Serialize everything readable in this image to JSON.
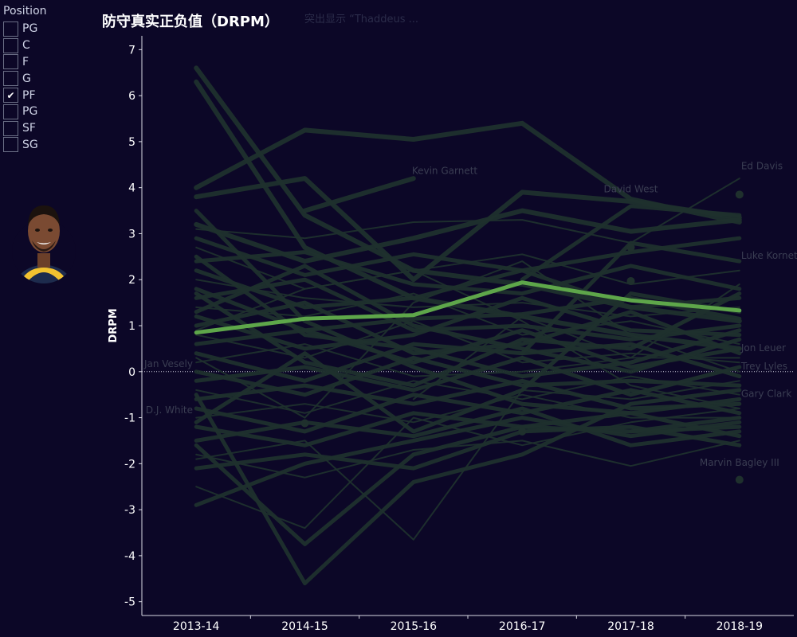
{
  "legend": {
    "title": "Position",
    "items": [
      {
        "label": "PG",
        "checked": false
      },
      {
        "label": "C",
        "checked": false
      },
      {
        "label": "F",
        "checked": false
      },
      {
        "label": "G",
        "checked": false
      },
      {
        "label": "PF",
        "checked": true
      },
      {
        "label": "PG",
        "checked": false
      },
      {
        "label": "SF",
        "checked": false
      },
      {
        "label": "SG",
        "checked": false
      }
    ]
  },
  "avatar_icon": "player-headshot-icon",
  "title": "防守真实正负值（DRPM）",
  "subnote": "突出显示 “Thaddeus ...",
  "colors": {
    "background": "#0c0727",
    "muted_lines": "#1f302d",
    "highlight": "#5ea64a",
    "axis_text": "#ffffff",
    "player_label": "#3a3d52"
  },
  "chart_data": {
    "type": "line",
    "title": "防守真实正负值（DRPM）",
    "ylabel": "DRPM",
    "xlabel": "",
    "categories": [
      "2013-14",
      "2014-15",
      "2015-16",
      "2016-17",
      "2017-18",
      "2018-19"
    ],
    "ylim": [
      -5.3,
      7.3
    ],
    "yticks": [
      7,
      6,
      5,
      4,
      3,
      2,
      1,
      0,
      -1,
      -2,
      -3,
      -4,
      -5
    ],
    "reference_line": 0,
    "highlight_series": {
      "values": [
        0.85,
        1.15,
        1.23,
        1.94,
        1.55,
        1.33
      ]
    },
    "series": [
      {
        "values": [
          6.6,
          3.4,
          2.2,
          1.9,
          1.4,
          1.1
        ]
      },
      {
        "values": [
          6.3,
          2.7,
          1.6,
          1.2,
          0.8,
          0.5
        ]
      },
      {
        "values": [
          4.0,
          5.25,
          5.05,
          5.4,
          3.75,
          3.25
        ]
      },
      {
        "values": [
          3.8,
          4.2,
          2.0,
          3.9,
          3.7,
          3.35
        ]
      },
      {
        "values": [
          null,
          3.5,
          4.2,
          null,
          null,
          null
        ]
      },
      {
        "values": [
          3.2,
          2.4,
          2.9,
          3.5,
          3.05,
          3.3
        ]
      },
      {
        "values": [
          3.1,
          2.9,
          3.25,
          3.3,
          2.8,
          4.2
        ]
      },
      {
        "values": [
          null,
          null,
          null,
          2.0,
          3.6,
          3.4
        ]
      },
      {
        "values": [
          2.9,
          2.1,
          2.55,
          2.2,
          2.6,
          2.9
        ]
      },
      {
        "values": [
          2.7,
          1.8,
          2.2,
          2.55,
          1.9,
          2.2
        ]
      },
      {
        "values": [
          2.4,
          2.6,
          1.9,
          1.7,
          2.3,
          1.8
        ]
      },
      {
        "values": [
          2.2,
          1.4,
          1.6,
          2.2,
          1.4,
          1.6
        ]
      },
      {
        "values": [
          2.0,
          1.6,
          1.4,
          1.5,
          1.2,
          1.4
        ]
      },
      {
        "values": [
          1.8,
          0.9,
          1.15,
          1.25,
          1.6,
          1.15
        ]
      },
      {
        "values": [
          1.6,
          2.0,
          0.9,
          1.0,
          0.7,
          1.0
        ]
      },
      {
        "values": [
          1.4,
          1.2,
          1.7,
          0.8,
          1.1,
          0.6
        ]
      },
      {
        "values": [
          1.2,
          0.5,
          0.8,
          1.6,
          0.9,
          0.8
        ]
      },
      {
        "values": [
          1.0,
          1.5,
          0.4,
          0.6,
          1.3,
          0.4
        ]
      },
      {
        "values": [
          0.8,
          0.3,
          1.1,
          0.2,
          0.4,
          0.2
        ]
      },
      {
        "values": [
          0.6,
          0.9,
          0.2,
          0.9,
          0.1,
          0.5
        ]
      },
      {
        "values": [
          0.4,
          -0.2,
          0.6,
          0.4,
          0.6,
          -0.1
        ]
      },
      {
        "values": [
          0.2,
          0.6,
          -0.1,
          0.0,
          0.3,
          0.3
        ]
      },
      {
        "values": [
          0.0,
          -0.5,
          0.3,
          -0.3,
          -0.2,
          -0.3
        ]
      },
      {
        "values": [
          -0.2,
          0.1,
          -0.4,
          0.3,
          -0.5,
          0.1
        ]
      },
      {
        "values": [
          -0.4,
          -0.9,
          -0.2,
          -0.6,
          -0.1,
          -0.5
        ]
      },
      {
        "values": [
          -0.6,
          -0.3,
          -0.7,
          -0.2,
          -0.8,
          -0.7
        ]
      },
      {
        "values": [
          -0.8,
          -1.3,
          -0.5,
          -0.9,
          -0.4,
          -0.9
        ]
      },
      {
        "values": [
          -1.0,
          -0.7,
          -1.1,
          -0.5,
          -1.0,
          -1.0
        ]
      },
      {
        "values": [
          -1.2,
          -1.6,
          -0.9,
          -1.2,
          -1.3,
          -1.2
        ]
      },
      {
        "values": [
          -1.5,
          -1.1,
          -1.4,
          -0.8,
          -1.6,
          -1.3
        ]
      },
      {
        "values": [
          -1.8,
          -2.3,
          -1.7,
          -1.5,
          -2.05,
          -1.5
        ]
      },
      {
        "values": [
          -2.1,
          -1.8,
          -2.1,
          -1.3,
          -1.2,
          -1.6
        ]
      },
      {
        "values": [
          -2.9,
          -2.0,
          -1.5,
          -1.0,
          -1.4,
          -1.1
        ]
      },
      {
        "values": [
          -2.5,
          -3.4,
          -1.0,
          -1.6,
          -1.1,
          -0.8
        ]
      },
      {
        "values": [
          -1.6,
          -3.75,
          -1.8,
          -1.2,
          -0.9,
          -0.6
        ]
      },
      {
        "values": [
          -0.5,
          -4.6,
          -2.4,
          -1.8,
          -0.7,
          -0.4
        ]
      },
      {
        "values": [
          -1.9,
          -1.5,
          -3.65,
          -0.4,
          -0.6,
          -0.2
        ]
      },
      {
        "values": [
          1.3,
          2.3,
          1.0,
          0.5,
          0.0,
          0.7
        ]
      },
      {
        "values": [
          2.5,
          0.8,
          0.5,
          -0.1,
          0.2,
          0.9
        ]
      },
      {
        "values": [
          0.9,
          1.8,
          2.2,
          1.1,
          -0.3,
          -0.8
        ]
      },
      {
        "values": [
          1.7,
          0.2,
          -0.3,
          0.7,
          0.5,
          1.7
        ]
      },
      {
        "values": [
          3.5,
          1.1,
          0.1,
          -0.7,
          -0.9,
          -1.4
        ]
      },
      {
        "values": [
          0.3,
          -1.0,
          1.5,
          2.4,
          0.8,
          0.0
        ]
      },
      {
        "values": [
          -1.1,
          0.4,
          -1.3,
          -0.4,
          1.7,
          1.3
        ]
      },
      {
        "values": [
          null,
          null,
          null,
          0.4,
          2.8,
          2.4
        ]
      },
      {
        "values": [
          null,
          null,
          -0.6,
          1.2,
          0.3,
          1.9
        ]
      },
      {
        "values": [
          null,
          null,
          null,
          null,
          -1.3,
          -1.0
        ]
      },
      {
        "values": [
          null,
          null,
          null,
          null,
          null,
          null
        ]
      }
    ],
    "points": [
      {
        "x": "2018-19",
        "y": 3.85
      },
      {
        "x": "2017-18",
        "y": 2.7
      },
      {
        "x": "2017-18",
        "y": 1.97
      },
      {
        "x": "2018-19",
        "y": -2.35
      },
      {
        "x": "2014-15",
        "y": -1.12
      },
      {
        "x": "2016-17",
        "y": -1.3
      }
    ],
    "annotations": [
      {
        "text": "Kevin Garnett",
        "x": "2015-16",
        "y": 4.3,
        "anchor": "start"
      },
      {
        "text": "David West",
        "x": "2017-18",
        "y": 3.9,
        "anchor": "middle"
      },
      {
        "text": "Ed Davis",
        "x": "2018-19",
        "y": 4.4,
        "anchor": "start"
      },
      {
        "text": "Luke Kornet",
        "x": "2018-19",
        "y": 2.45,
        "anchor": "start"
      },
      {
        "text": "Jon Leuer",
        "x": "2018-19",
        "y": 0.45,
        "anchor": "start"
      },
      {
        "text": "Trey Lyles",
        "x": "2018-19",
        "y": 0.05,
        "anchor": "start"
      },
      {
        "text": "Gary Clark",
        "x": "2018-19",
        "y": -0.55,
        "anchor": "start"
      },
      {
        "text": "Marvin Bagley III",
        "x": "2018-19",
        "y": -2.05,
        "anchor": "middle"
      },
      {
        "text": "Jan Vesely",
        "x": "2013-14",
        "y": 0.1,
        "anchor": "end"
      },
      {
        "text": "D.J. White",
        "x": "2013-14",
        "y": -0.9,
        "anchor": "end"
      }
    ]
  }
}
